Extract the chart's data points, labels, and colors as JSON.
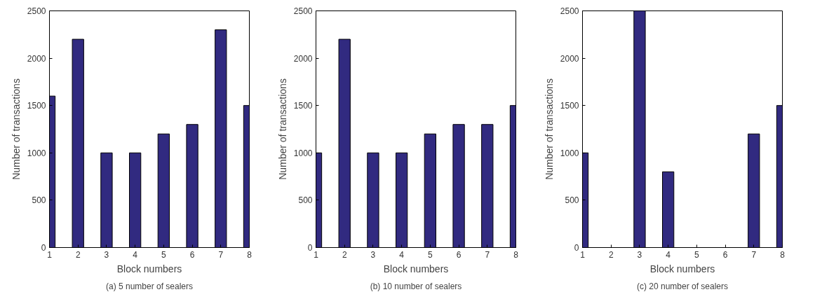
{
  "chart_data": [
    {
      "type": "bar",
      "x": [
        1,
        2,
        3,
        4,
        5,
        6,
        7,
        8
      ],
      "values": [
        1600,
        2200,
        1000,
        1000,
        1200,
        1300,
        2300,
        1500
      ],
      "color": "#312a80",
      "xlabel": "Block numbers",
      "ylabel": "Number of transactions",
      "xlim": [
        1,
        8
      ],
      "xticks": [
        1,
        2,
        3,
        4,
        5,
        6,
        7,
        8
      ],
      "ylim": [
        0,
        2500
      ],
      "yticks": [
        0,
        500,
        1000,
        1500,
        2000,
        2500
      ],
      "grid": false,
      "annotations": [
        "(a) 5 number of sealers"
      ]
    },
    {
      "type": "bar",
      "x": [
        1,
        2,
        3,
        4,
        5,
        6,
        7,
        8
      ],
      "values": [
        1000,
        2200,
        1000,
        1000,
        1200,
        1300,
        1300,
        1500
      ],
      "color": "#312a80",
      "xlabel": "Block numbers",
      "ylabel": "Number of transactions",
      "xlim": [
        1,
        8
      ],
      "xticks": [
        1,
        2,
        3,
        4,
        5,
        6,
        7,
        8
      ],
      "ylim": [
        0,
        2500
      ],
      "yticks": [
        0,
        500,
        1000,
        1500,
        2000,
        2500
      ],
      "grid": false,
      "annotations": [
        "(b) 10 number of sealers"
      ]
    },
    {
      "type": "bar",
      "x": [
        1,
        2,
        3,
        4,
        5,
        6,
        7,
        8
      ],
      "values": [
        1000,
        null,
        2500,
        800,
        null,
        null,
        1200,
        1500
      ],
      "color": "#312a80",
      "xlabel": "Block numbers",
      "ylabel": "Number of transactions",
      "xlim": [
        1,
        8
      ],
      "xticks": [
        1,
        2,
        3,
        4,
        5,
        6,
        7,
        8
      ],
      "ylim": [
        0,
        2500
      ],
      "yticks": [
        0,
        500,
        1000,
        1500,
        2000,
        2500
      ],
      "grid": false,
      "annotations": [
        "(c) 20 number of sealers"
      ]
    }
  ]
}
